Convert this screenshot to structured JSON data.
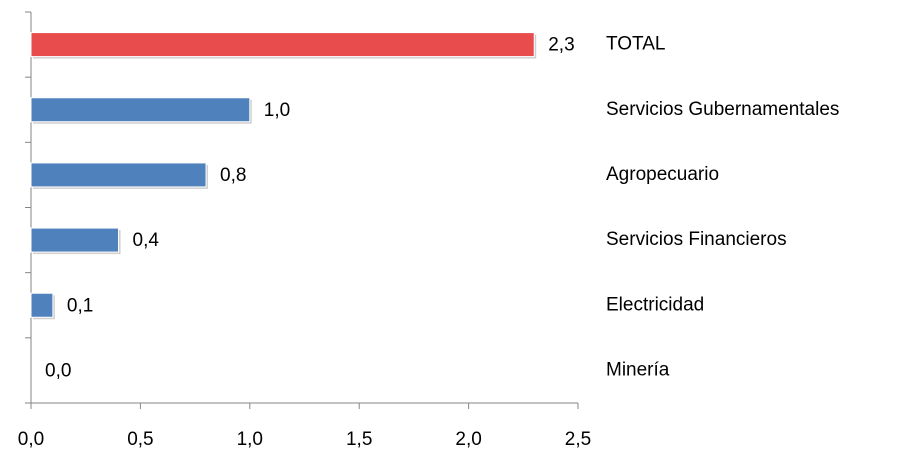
{
  "chart_data": {
    "type": "bar",
    "orientation": "horizontal",
    "categories": [
      "TOTAL",
      "Servicios Gubernamentales",
      "Agropecuario",
      "Servicios Financieros",
      "Electricidad",
      "Minería"
    ],
    "values": [
      2.3,
      1.0,
      0.8,
      0.4,
      0.1,
      0.0
    ],
    "value_labels": [
      "2,3",
      "1,0",
      "0,8",
      "0,4",
      "0,1",
      "0,0"
    ],
    "colors": [
      "#e84c4c",
      "#4f81bd",
      "#4f81bd",
      "#4f81bd",
      "#4f81bd",
      "#4f81bd"
    ],
    "xlim": [
      0,
      2.5
    ],
    "xticks": [
      {
        "value": 0,
        "label": "0,0"
      },
      {
        "value": 0.5,
        "label": "0,5"
      },
      {
        "value": 1.0,
        "label": "1,0"
      },
      {
        "value": 1.5,
        "label": "1,5"
      },
      {
        "value": 2.0,
        "label": "2,0"
      },
      {
        "value": 2.5,
        "label": "2,5"
      }
    ],
    "grid": false
  }
}
